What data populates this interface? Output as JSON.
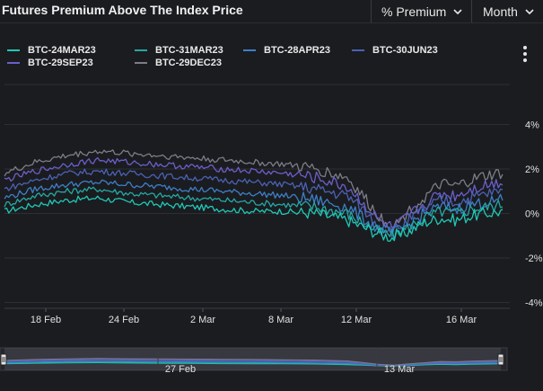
{
  "header": {
    "title": "Futures Premium Above The Index Price",
    "metric_dropdown": "% Premium",
    "period_dropdown": "Month"
  },
  "menu_icon": "kebab-menu-icon",
  "colors": {
    "background": "#1b1c20",
    "grid": "#2e2f35",
    "BTC-24MAR23": "#1fc9b5",
    "BTC-31MAR23": "#25a8a3",
    "BTC-28APR23": "#3d7fc7",
    "BTC-30JUN23": "#4a62b3",
    "BTC-29SEP23": "#6a5fc9",
    "BTC-29DEC23": "#7c7d86"
  },
  "chart_data": {
    "type": "line",
    "title": "Futures Premium Above The Index Price",
    "xlabel": "",
    "ylabel": "",
    "y_unit": "%",
    "ylim": [
      -4,
      4
    ],
    "y_ticks": [
      "4%",
      "2%",
      "0%",
      "-2%",
      "-4%"
    ],
    "x_range": [
      "2023-02-15",
      "2023-03-19"
    ],
    "x_ticks": [
      "18 Feb",
      "24 Feb",
      "2 Mar",
      "8 Mar",
      "12 Mar",
      "16 Mar"
    ],
    "grid": true,
    "legend": "top-left",
    "x": [
      "2023-02-15",
      "2023-02-17",
      "2023-02-19",
      "2023-02-21",
      "2023-02-23",
      "2023-02-25",
      "2023-02-27",
      "2023-03-01",
      "2023-03-03",
      "2023-03-05",
      "2023-03-07",
      "2023-03-09",
      "2023-03-10",
      "2023-03-11",
      "2023-03-12",
      "2023-03-13",
      "2023-03-14",
      "2023-03-15",
      "2023-03-16",
      "2023-03-17",
      "2023-03-18",
      "2023-03-19"
    ],
    "series": [
      {
        "name": "BTC-24MAR23",
        "values": [
          0.1,
          0.4,
          0.6,
          0.7,
          0.5,
          0.4,
          0.3,
          0.2,
          0.1,
          0.1,
          0.0,
          -0.3,
          -0.6,
          -0.9,
          -1.1,
          -0.8,
          -0.4,
          -0.2,
          -0.3,
          -0.1,
          0.0,
          0.1
        ]
      },
      {
        "name": "BTC-31MAR23",
        "values": [
          0.4,
          0.8,
          1.0,
          1.1,
          0.9,
          0.8,
          0.7,
          0.6,
          0.5,
          0.4,
          0.3,
          0.0,
          -0.4,
          -0.8,
          -1.0,
          -0.6,
          -0.2,
          0.1,
          0.0,
          0.2,
          0.3,
          0.4
        ]
      },
      {
        "name": "BTC-28APR23",
        "values": [
          0.7,
          1.1,
          1.3,
          1.4,
          1.3,
          1.2,
          1.1,
          1.0,
          0.9,
          0.8,
          0.6,
          0.3,
          -0.2,
          -0.7,
          -0.9,
          -0.5,
          0.0,
          0.3,
          0.2,
          0.4,
          0.5,
          0.6
        ]
      },
      {
        "name": "BTC-30JUN23",
        "values": [
          1.1,
          1.5,
          1.8,
          1.9,
          1.8,
          1.7,
          1.6,
          1.5,
          1.4,
          1.3,
          1.1,
          0.8,
          0.2,
          -0.5,
          -0.8,
          -0.3,
          0.2,
          0.6,
          0.5,
          0.7,
          0.9,
          1.0
        ]
      },
      {
        "name": "BTC-29SEP23",
        "values": [
          1.5,
          1.9,
          2.2,
          2.4,
          2.3,
          2.2,
          2.1,
          2.0,
          1.9,
          1.8,
          1.6,
          1.2,
          0.5,
          -0.3,
          -0.7,
          -0.1,
          0.4,
          0.9,
          0.8,
          1.1,
          1.3,
          1.4
        ]
      },
      {
        "name": "BTC-29DEC23",
        "values": [
          1.8,
          2.3,
          2.6,
          2.8,
          2.7,
          2.6,
          2.5,
          2.4,
          2.3,
          2.2,
          2.0,
          1.6,
          0.8,
          -0.1,
          -0.6,
          0.1,
          0.7,
          1.3,
          1.2,
          1.5,
          1.7,
          1.8
        ]
      }
    ],
    "navigator": {
      "x_ticks": [
        "27 Feb",
        "13 Mar"
      ]
    }
  }
}
